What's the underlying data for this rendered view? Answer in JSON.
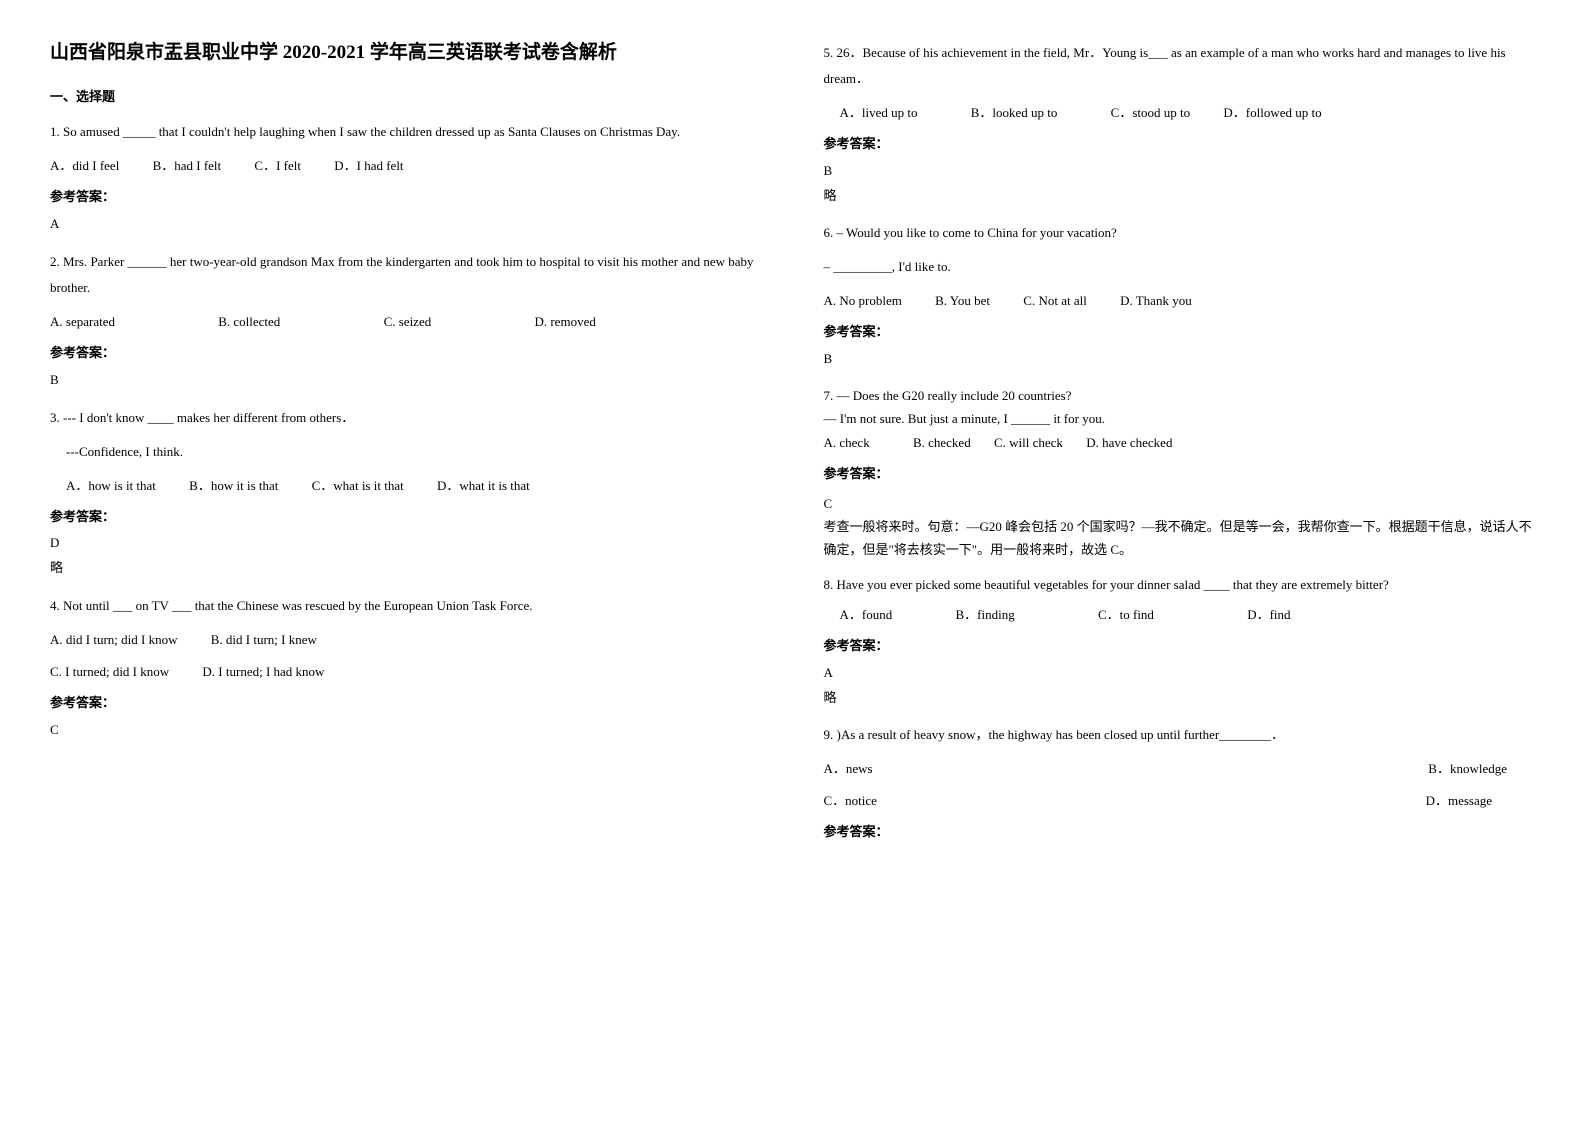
{
  "title": "山西省阳泉市盂县职业中学 2020-2021 学年高三英语联考试卷含解析",
  "section_header": "一、选择题",
  "left_column": {
    "q1": {
      "text": "1. So amused _____ that I couldn't help laughing when I saw the children dressed up as Santa    Clauses on Christmas Day.",
      "optA": "A．did I feel",
      "optB": "B．had I felt",
      "optC": "C．I felt",
      "optD": "D．I had felt",
      "answer_label": "参考答案：",
      "answer": "A"
    },
    "q2": {
      "text": "2. Mrs. Parker ______ her two-year-old grandson Max from the kindergarten and took him to hospital to visit his mother and new baby brother.",
      "optA": "A. separated",
      "optB": "B. collected",
      "optC": "C. seized",
      "optD": "D. removed",
      "answer_label": "参考答案：",
      "answer": "B"
    },
    "q3": {
      "text1": "3. --- I don't know ____ makes her different from others．",
      "text2": "---Confidence, I think.",
      "optA": "A．how is it that",
      "optB": "B．how it is that",
      "optC": "C．what is it that",
      "optD": "D．what it is that",
      "answer_label": "参考答案：",
      "answer": "D",
      "note": "略"
    },
    "q4": {
      "text": "4. Not until ___ on TV ___ that the Chinese was rescued by the European Union Task Force.",
      "optA": "A. did I turn; did I know",
      "optB": "B. did I turn; I knew",
      "optC": "C. I turned; did I know",
      "optD": "D. I turned; I had know",
      "answer_label": "参考答案：",
      "answer": "C"
    }
  },
  "right_column": {
    "q5": {
      "text": "5. 26．Because of his achievement in the field, Mr．Young is___ as an example of a man who works hard and manages to live his dream．",
      "optA": "A．lived up to",
      "optB": "B．looked up to",
      "optC": "C．stood up to",
      "optD": "D．followed up to",
      "answer_label": "参考答案：",
      "answer": "B",
      "note": "略"
    },
    "q6": {
      "text1": "6. – Would you like to come to China for your vacation?",
      "text2": "– _________, I'd like to.",
      "optA": "A. No problem",
      "optB": "B. You bet",
      "optC": "C. Not at all",
      "optD": "D. Thank you",
      "answer_label": "参考答案：",
      "answer": "B"
    },
    "q7": {
      "text1": "7. — Does the G20 really include 20 countries?",
      "text2": "— I'm not sure. But just a minute, I ______ it for you.",
      "optA": "A. check",
      "optB": "B. checked",
      "optC": "C. will check",
      "optD": "D. have checked",
      "answer_label": "参考答案：",
      "answer": "C",
      "explanation": "考查一般将来时。句意：—G20 峰会包括 20 个国家吗？—我不确定。但是等一会，我帮你查一下。根据题干信息，说话人不确定，但是\"将去核实一下\"。用一般将来时，故选 C。"
    },
    "q8": {
      "text": "8. Have you ever picked some beautiful vegetables for your dinner salad ____ that they are extremely bitter?",
      "optA": "A．found",
      "optB": "B．finding",
      "optC": "C．to find",
      "optD": "D．find",
      "answer_label": "参考答案：",
      "answer": "A",
      "note": "略"
    },
    "q9": {
      "text": "9. )As a result of heavy snow，the highway has been closed up until further________．",
      "optA": "A．news",
      "optB": "B．knowledge",
      "optC": "C．notice",
      "optD": "D．message",
      "answer_label": "参考答案："
    }
  }
}
